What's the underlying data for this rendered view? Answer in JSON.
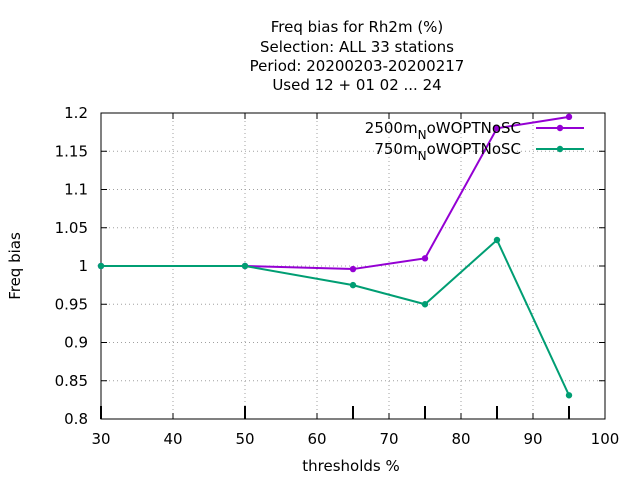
{
  "chart_data": {
    "type": "line",
    "title_lines": [
      "Freq bias  for Rh2m (%)",
      "Selection: ALL     33 stations",
      "Period: 20200203-20200217",
      "Used  12 + 01 02 ... 24"
    ],
    "xlabel": "thresholds %",
    "ylabel": "Freq bias",
    "xlim": [
      30,
      100
    ],
    "ylim": [
      0.8,
      1.2
    ],
    "x_ticks": [
      "30",
      "40",
      "50",
      "60",
      "70",
      "80",
      "90",
      "100"
    ],
    "y_ticks": [
      "0.8",
      "0.85",
      "0.9",
      "0.95",
      "1",
      "1.05",
      "1.1",
      "1.15",
      "1.2"
    ],
    "x_tick_values": [
      30,
      40,
      50,
      60,
      70,
      80,
      90,
      100
    ],
    "y_tick_values": [
      0.8,
      0.85,
      0.9,
      0.95,
      1.0,
      1.05,
      1.1,
      1.15,
      1.2
    ],
    "threshold_marks": [
      30,
      50,
      65,
      75,
      85,
      95
    ],
    "grid": true,
    "legend_position": "top-right",
    "series": [
      {
        "name": "2500m",
        "name_sub": "N",
        "name_rest": "oWOPTNoSC",
        "color": "#9400d3",
        "x": [
          30,
          50,
          65,
          75,
          85,
          95
        ],
        "values": [
          1.0,
          1.0,
          0.996,
          1.01,
          1.18,
          1.195
        ]
      },
      {
        "name": "750m",
        "name_sub": "N",
        "name_rest": "oWOPTNoSC",
        "color": "#009e73",
        "x": [
          30,
          50,
          65,
          75,
          85,
          95
        ],
        "values": [
          1.0,
          1.0,
          0.975,
          0.95,
          1.034,
          0.831
        ]
      }
    ]
  }
}
